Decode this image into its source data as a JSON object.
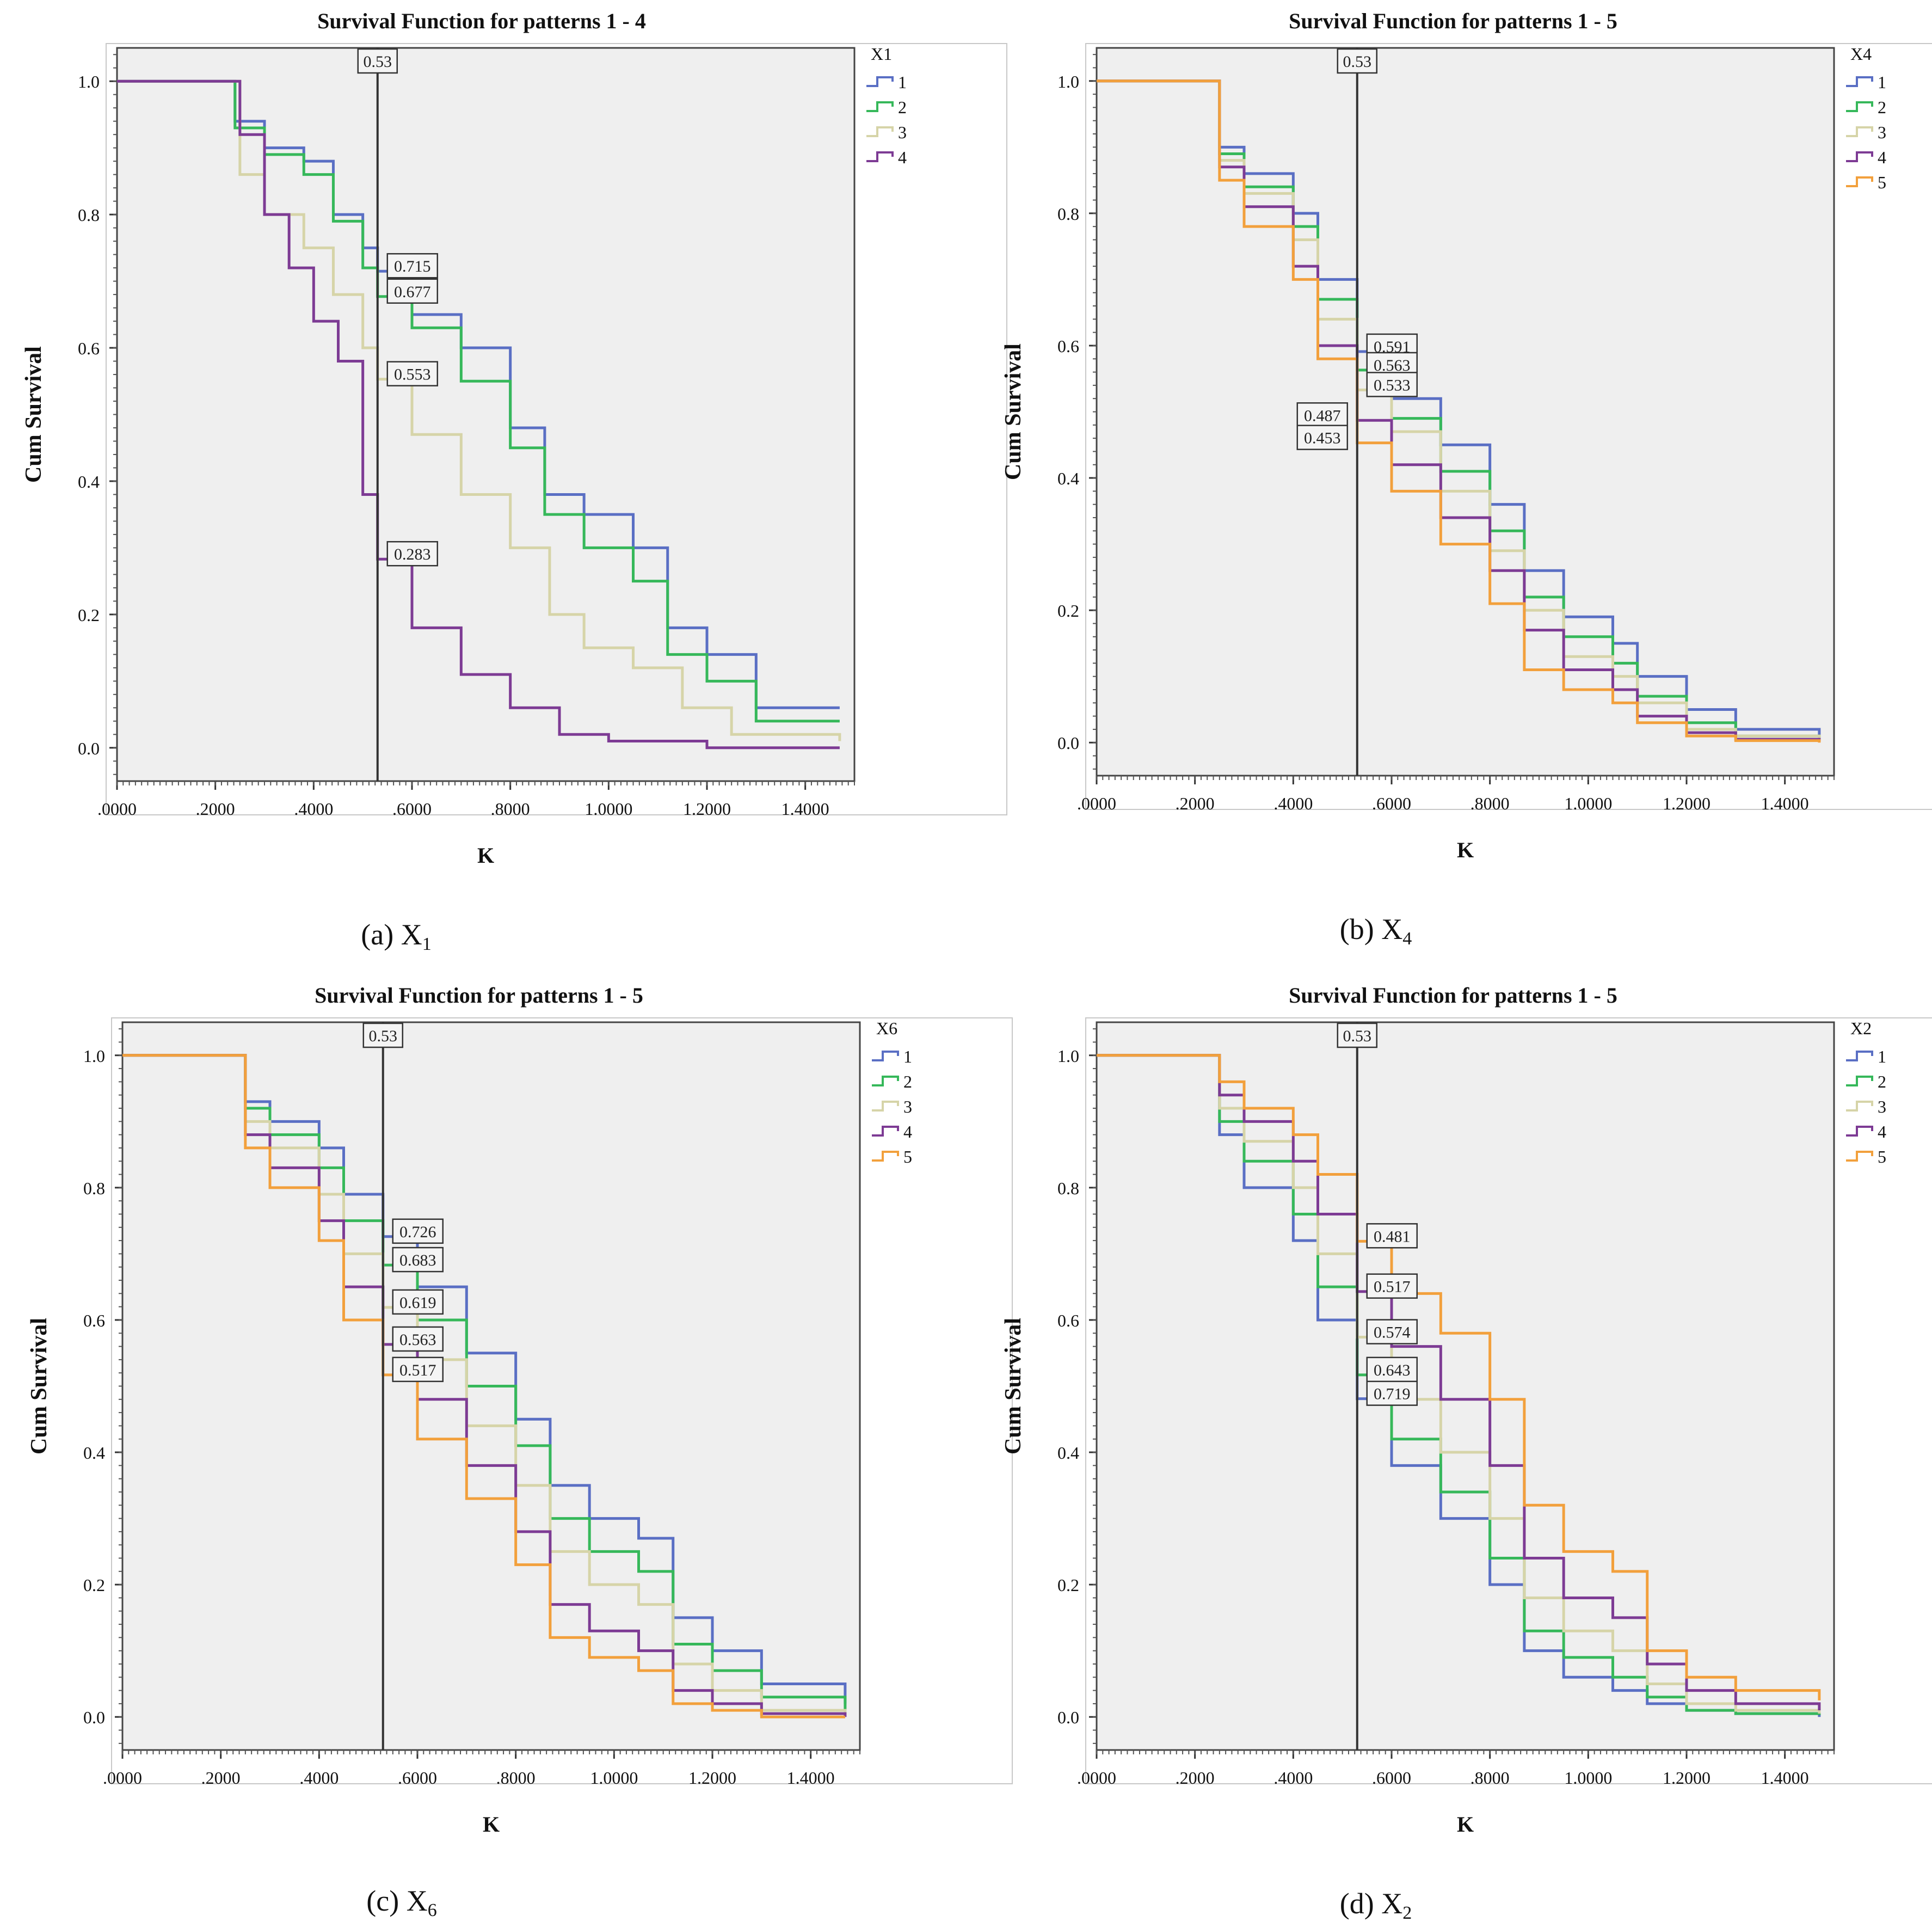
{
  "charts": [
    {
      "title": "Survival Function for patterns 1 - 4",
      "legend_title": "X1",
      "caption": "(a) X",
      "caption_sub": "1",
      "cut_label": "0.53",
      "annotations": [
        "0.715",
        "0.677",
        "0.553",
        "0.283"
      ],
      "xlabel": "K",
      "ylabel": "Cum Survival",
      "xticks": [
        ".0000",
        ".2000",
        ".4000",
        ".6000",
        ".8000",
        "1.0000",
        "1.2000",
        "1.4000"
      ],
      "yticks": [
        "0.0",
        "0.2",
        "0.4",
        "0.6",
        "0.8",
        "1.0"
      ]
    },
    {
      "title": "Survival Function for patterns 1 - 5",
      "legend_title": "X4",
      "caption": "(b) X",
      "caption_sub": "4",
      "cut_label": "0.53",
      "annotations": [
        "0.591",
        "0.563",
        "0.533",
        "0.487",
        "0.453"
      ],
      "xlabel": "K",
      "ylabel": "Cum Survival",
      "xticks": [
        ".0000",
        ".2000",
        ".4000",
        ".6000",
        ".8000",
        "1.0000",
        "1.2000",
        "1.4000"
      ],
      "yticks": [
        "0.0",
        "0.2",
        "0.4",
        "0.6",
        "0.8",
        "1.0"
      ]
    },
    {
      "title": "Survival Function for patterns 1 - 5",
      "legend_title": "X6",
      "caption": "(c) X",
      "caption_sub": "6",
      "cut_label": "0.53",
      "annotations": [
        "0.726",
        "0.683",
        "0.619",
        "0.563",
        "0.517"
      ],
      "xlabel": "K",
      "ylabel": "Cum Survival",
      "xticks": [
        ".0000",
        ".2000",
        ".4000",
        ".6000",
        ".8000",
        "1.0000",
        "1.2000",
        "1.4000"
      ],
      "yticks": [
        "0.0",
        "0.2",
        "0.4",
        "0.6",
        "0.8",
        "1.0"
      ]
    },
    {
      "title": "Survival Function for patterns 1 - 5",
      "legend_title": "X2",
      "caption": "(d) X",
      "caption_sub": "2",
      "cut_label": "0.53",
      "annotations": [
        "0.719",
        "0.643",
        "0.574",
        "0.517",
        "0.481"
      ],
      "xlabel": "K",
      "ylabel": "Cum Survival",
      "xticks": [
        ".0000",
        ".2000",
        ".4000",
        ".6000",
        ".8000",
        "1.0000",
        "1.2000",
        "1.4000"
      ],
      "yticks": [
        "0.0",
        "0.2",
        "0.4",
        "0.6",
        "0.8",
        "1.0"
      ]
    }
  ],
  "colors": {
    "1": "#5a6fc4",
    "2": "#36b85a",
    "3": "#d6d4a8",
    "4": "#7d3b94",
    "5": "#f2a03c",
    "panel": "#efefef"
  },
  "chart_data": [
    {
      "type": "line",
      "title": "Survival Function for patterns 1 - 4",
      "xlabel": "K",
      "ylabel": "Cum Survival",
      "xlim": [
        0,
        1.5
      ],
      "ylim": [
        -0.05,
        1.05
      ],
      "cut_x": 0.53,
      "legend_title": "X1",
      "series": [
        {
          "name": "1",
          "x": [
            0,
            0.19,
            0.24,
            0.3,
            0.38,
            0.44,
            0.5,
            0.53,
            0.6,
            0.7,
            0.8,
            0.87,
            0.95,
            1.05,
            1.12,
            1.2,
            1.3,
            1.47
          ],
          "y": [
            1,
            1,
            0.94,
            0.9,
            0.88,
            0.8,
            0.75,
            0.715,
            0.65,
            0.6,
            0.48,
            0.38,
            0.35,
            0.3,
            0.18,
            0.14,
            0.06,
            0.06
          ]
        },
        {
          "name": "2",
          "x": [
            0,
            0.19,
            0.24,
            0.3,
            0.38,
            0.44,
            0.5,
            0.53,
            0.6,
            0.7,
            0.8,
            0.87,
            0.95,
            1.05,
            1.12,
            1.2,
            1.3,
            1.47
          ],
          "y": [
            1,
            1,
            0.93,
            0.89,
            0.86,
            0.79,
            0.72,
            0.677,
            0.63,
            0.55,
            0.45,
            0.35,
            0.3,
            0.25,
            0.14,
            0.1,
            0.04,
            0.04
          ]
        },
        {
          "name": "3",
          "x": [
            0,
            0.19,
            0.25,
            0.3,
            0.38,
            0.44,
            0.5,
            0.53,
            0.6,
            0.7,
            0.8,
            0.88,
            0.95,
            1.05,
            1.15,
            1.25,
            1.47
          ],
          "y": [
            1,
            1,
            0.86,
            0.8,
            0.75,
            0.68,
            0.6,
            0.553,
            0.47,
            0.38,
            0.3,
            0.2,
            0.15,
            0.12,
            0.06,
            0.02,
            0.01
          ]
        },
        {
          "name": "4",
          "x": [
            0,
            0.2,
            0.25,
            0.3,
            0.35,
            0.4,
            0.45,
            0.5,
            0.53,
            0.6,
            0.7,
            0.8,
            0.9,
            1.0,
            1.2,
            1.47
          ],
          "y": [
            1,
            1,
            0.92,
            0.8,
            0.72,
            0.64,
            0.58,
            0.38,
            0.283,
            0.18,
            0.11,
            0.06,
            0.02,
            0.01,
            0,
            0
          ]
        }
      ]
    },
    {
      "type": "line",
      "title": "Survival Function for patterns 1 - 5",
      "xlabel": "K",
      "ylabel": "Cum Survival",
      "xlim": [
        0,
        1.5
      ],
      "ylim": [
        -0.05,
        1.05
      ],
      "cut_x": 0.53,
      "legend_title": "X4",
      "series": [
        {
          "name": "1",
          "x": [
            0,
            0.2,
            0.25,
            0.3,
            0.4,
            0.45,
            0.53,
            0.6,
            0.7,
            0.8,
            0.87,
            0.95,
            1.05,
            1.1,
            1.2,
            1.3,
            1.47
          ],
          "y": [
            1,
            1,
            0.9,
            0.86,
            0.8,
            0.7,
            0.591,
            0.52,
            0.45,
            0.36,
            0.26,
            0.19,
            0.15,
            0.1,
            0.05,
            0.02,
            0.01
          ]
        },
        {
          "name": "2",
          "x": [
            0,
            0.2,
            0.25,
            0.3,
            0.4,
            0.45,
            0.53,
            0.6,
            0.7,
            0.8,
            0.87,
            0.95,
            1.05,
            1.1,
            1.2,
            1.3,
            1.47
          ],
          "y": [
            1,
            1,
            0.89,
            0.84,
            0.78,
            0.67,
            0.563,
            0.49,
            0.41,
            0.32,
            0.22,
            0.16,
            0.12,
            0.07,
            0.03,
            0.01,
            0.005
          ]
        },
        {
          "name": "3",
          "x": [
            0,
            0.2,
            0.25,
            0.3,
            0.4,
            0.45,
            0.53,
            0.6,
            0.7,
            0.8,
            0.87,
            0.95,
            1.05,
            1.1,
            1.2,
            1.3,
            1.47
          ],
          "y": [
            1,
            1,
            0.88,
            0.83,
            0.76,
            0.64,
            0.533,
            0.47,
            0.38,
            0.29,
            0.2,
            0.13,
            0.1,
            0.06,
            0.02,
            0.01,
            0.003
          ]
        },
        {
          "name": "4",
          "x": [
            0,
            0.2,
            0.25,
            0.3,
            0.4,
            0.45,
            0.53,
            0.6,
            0.7,
            0.8,
            0.87,
            0.95,
            1.05,
            1.1,
            1.2,
            1.3,
            1.47
          ],
          "y": [
            1,
            1,
            0.87,
            0.81,
            0.72,
            0.6,
            0.487,
            0.42,
            0.34,
            0.26,
            0.17,
            0.11,
            0.08,
            0.04,
            0.015,
            0.005,
            0.002
          ]
        },
        {
          "name": "5",
          "x": [
            0,
            0.2,
            0.25,
            0.3,
            0.4,
            0.45,
            0.53,
            0.6,
            0.7,
            0.8,
            0.87,
            0.95,
            1.05,
            1.1,
            1.2,
            1.3,
            1.47
          ],
          "y": [
            1,
            1,
            0.85,
            0.78,
            0.7,
            0.58,
            0.453,
            0.38,
            0.3,
            0.21,
            0.11,
            0.08,
            0.06,
            0.03,
            0.01,
            0.003,
            0
          ]
        }
      ]
    },
    {
      "type": "line",
      "title": "Survival Function for patterns 1 - 5",
      "xlabel": "K",
      "ylabel": "Cum Survival",
      "xlim": [
        0,
        1.5
      ],
      "ylim": [
        -0.05,
        1.05
      ],
      "cut_x": 0.53,
      "legend_title": "X6",
      "series": [
        {
          "name": "1",
          "x": [
            0,
            0.19,
            0.25,
            0.3,
            0.4,
            0.45,
            0.53,
            0.6,
            0.7,
            0.8,
            0.87,
            0.95,
            1.05,
            1.12,
            1.2,
            1.3,
            1.47
          ],
          "y": [
            1,
            1,
            0.93,
            0.9,
            0.86,
            0.79,
            0.726,
            0.65,
            0.55,
            0.45,
            0.35,
            0.3,
            0.27,
            0.15,
            0.1,
            0.05,
            0.02
          ]
        },
        {
          "name": "2",
          "x": [
            0,
            0.19,
            0.25,
            0.3,
            0.4,
            0.45,
            0.53,
            0.6,
            0.7,
            0.8,
            0.87,
            0.95,
            1.05,
            1.12,
            1.2,
            1.3,
            1.47
          ],
          "y": [
            1,
            1,
            0.92,
            0.88,
            0.83,
            0.75,
            0.683,
            0.6,
            0.5,
            0.41,
            0.3,
            0.25,
            0.22,
            0.11,
            0.07,
            0.03,
            0.01
          ]
        },
        {
          "name": "3",
          "x": [
            0,
            0.19,
            0.25,
            0.3,
            0.4,
            0.45,
            0.53,
            0.6,
            0.7,
            0.8,
            0.87,
            0.95,
            1.05,
            1.12,
            1.2,
            1.3,
            1.47
          ],
          "y": [
            1,
            1,
            0.9,
            0.86,
            0.79,
            0.7,
            0.619,
            0.54,
            0.44,
            0.35,
            0.25,
            0.2,
            0.17,
            0.08,
            0.04,
            0.01,
            0.005
          ]
        },
        {
          "name": "4",
          "x": [
            0,
            0.19,
            0.25,
            0.3,
            0.4,
            0.45,
            0.53,
            0.6,
            0.7,
            0.8,
            0.87,
            0.95,
            1.05,
            1.12,
            1.2,
            1.3,
            1.47
          ],
          "y": [
            1,
            1,
            0.88,
            0.83,
            0.75,
            0.65,
            0.563,
            0.48,
            0.38,
            0.28,
            0.17,
            0.13,
            0.1,
            0.04,
            0.02,
            0.005,
            0
          ]
        },
        {
          "name": "5",
          "x": [
            0,
            0.19,
            0.25,
            0.3,
            0.4,
            0.45,
            0.53,
            0.6,
            0.7,
            0.8,
            0.87,
            0.95,
            1.05,
            1.12,
            1.2,
            1.3,
            1.47
          ],
          "y": [
            1,
            1,
            0.86,
            0.8,
            0.72,
            0.6,
            0.517,
            0.42,
            0.33,
            0.23,
            0.12,
            0.09,
            0.07,
            0.02,
            0.01,
            0,
            0
          ]
        }
      ]
    },
    {
      "type": "line",
      "title": "Survival Function for patterns 1 - 5",
      "xlabel": "K",
      "ylabel": "Cum Survival",
      "xlim": [
        0,
        1.5
      ],
      "ylim": [
        -0.05,
        1.05
      ],
      "cut_x": 0.53,
      "legend_title": "X2",
      "series": [
        {
          "name": "1",
          "x": [
            0,
            0.2,
            0.25,
            0.3,
            0.4,
            0.45,
            0.53,
            0.6,
            0.7,
            0.8,
            0.87,
            0.95,
            1.05,
            1.12,
            1.2,
            1.3,
            1.47
          ],
          "y": [
            1,
            1,
            0.88,
            0.8,
            0.72,
            0.6,
            0.481,
            0.38,
            0.3,
            0.2,
            0.1,
            0.06,
            0.04,
            0.02,
            0.01,
            0.005,
            0
          ]
        },
        {
          "name": "2",
          "x": [
            0,
            0.2,
            0.25,
            0.3,
            0.4,
            0.45,
            0.53,
            0.6,
            0.7,
            0.8,
            0.87,
            0.95,
            1.05,
            1.12,
            1.2,
            1.3,
            1.47
          ],
          "y": [
            1,
            1,
            0.9,
            0.84,
            0.76,
            0.65,
            0.517,
            0.42,
            0.34,
            0.24,
            0.13,
            0.09,
            0.06,
            0.03,
            0.01,
            0.005,
            0.003
          ]
        },
        {
          "name": "3",
          "x": [
            0,
            0.2,
            0.25,
            0.3,
            0.4,
            0.45,
            0.53,
            0.6,
            0.7,
            0.8,
            0.87,
            0.95,
            1.05,
            1.12,
            1.2,
            1.3,
            1.47
          ],
          "y": [
            1,
            1,
            0.92,
            0.87,
            0.8,
            0.7,
            0.574,
            0.48,
            0.4,
            0.3,
            0.18,
            0.13,
            0.1,
            0.05,
            0.02,
            0.01,
            0.005
          ]
        },
        {
          "name": "4",
          "x": [
            0,
            0.2,
            0.25,
            0.3,
            0.4,
            0.45,
            0.53,
            0.6,
            0.7,
            0.8,
            0.87,
            0.95,
            1.05,
            1.12,
            1.2,
            1.3,
            1.47
          ],
          "y": [
            1,
            1,
            0.94,
            0.9,
            0.84,
            0.76,
            0.643,
            0.56,
            0.48,
            0.38,
            0.24,
            0.18,
            0.15,
            0.08,
            0.04,
            0.02,
            0.01
          ]
        },
        {
          "name": "5",
          "x": [
            0,
            0.2,
            0.25,
            0.3,
            0.4,
            0.45,
            0.53,
            0.6,
            0.7,
            0.8,
            0.87,
            0.95,
            1.05,
            1.12,
            1.2,
            1.3,
            1.47
          ],
          "y": [
            1,
            1,
            0.96,
            0.92,
            0.88,
            0.82,
            0.719,
            0.64,
            0.58,
            0.48,
            0.32,
            0.25,
            0.22,
            0.1,
            0.06,
            0.04,
            0.025
          ]
        }
      ]
    }
  ]
}
